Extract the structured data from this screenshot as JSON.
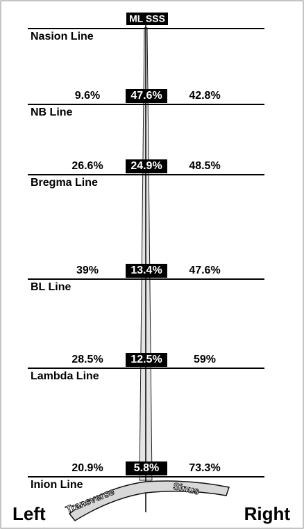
{
  "top_label": "ML SSS",
  "lines": [
    {
      "label": "Nasion Line"
    },
    {
      "label": "NB Line",
      "left": "9.6%",
      "middle": "47.6%",
      "right": "42.8%"
    },
    {
      "label": "Bregma Line",
      "left": "26.6%",
      "middle": "24.9%",
      "right": "48.5%"
    },
    {
      "label": "BL Line",
      "left": "39%",
      "middle": "13.4%",
      "right": "47.6%"
    },
    {
      "label": "Lambda Line",
      "left": "28.5%",
      "middle": "12.5%",
      "right": "59%"
    },
    {
      "label": "Inion Line",
      "left": "20.9%",
      "middle": "5.8%",
      "right": "73.3%"
    }
  ],
  "sinus": {
    "left": "Transverse",
    "right": "Sinus"
  },
  "sides": {
    "left": "Left",
    "right": "Right"
  }
}
